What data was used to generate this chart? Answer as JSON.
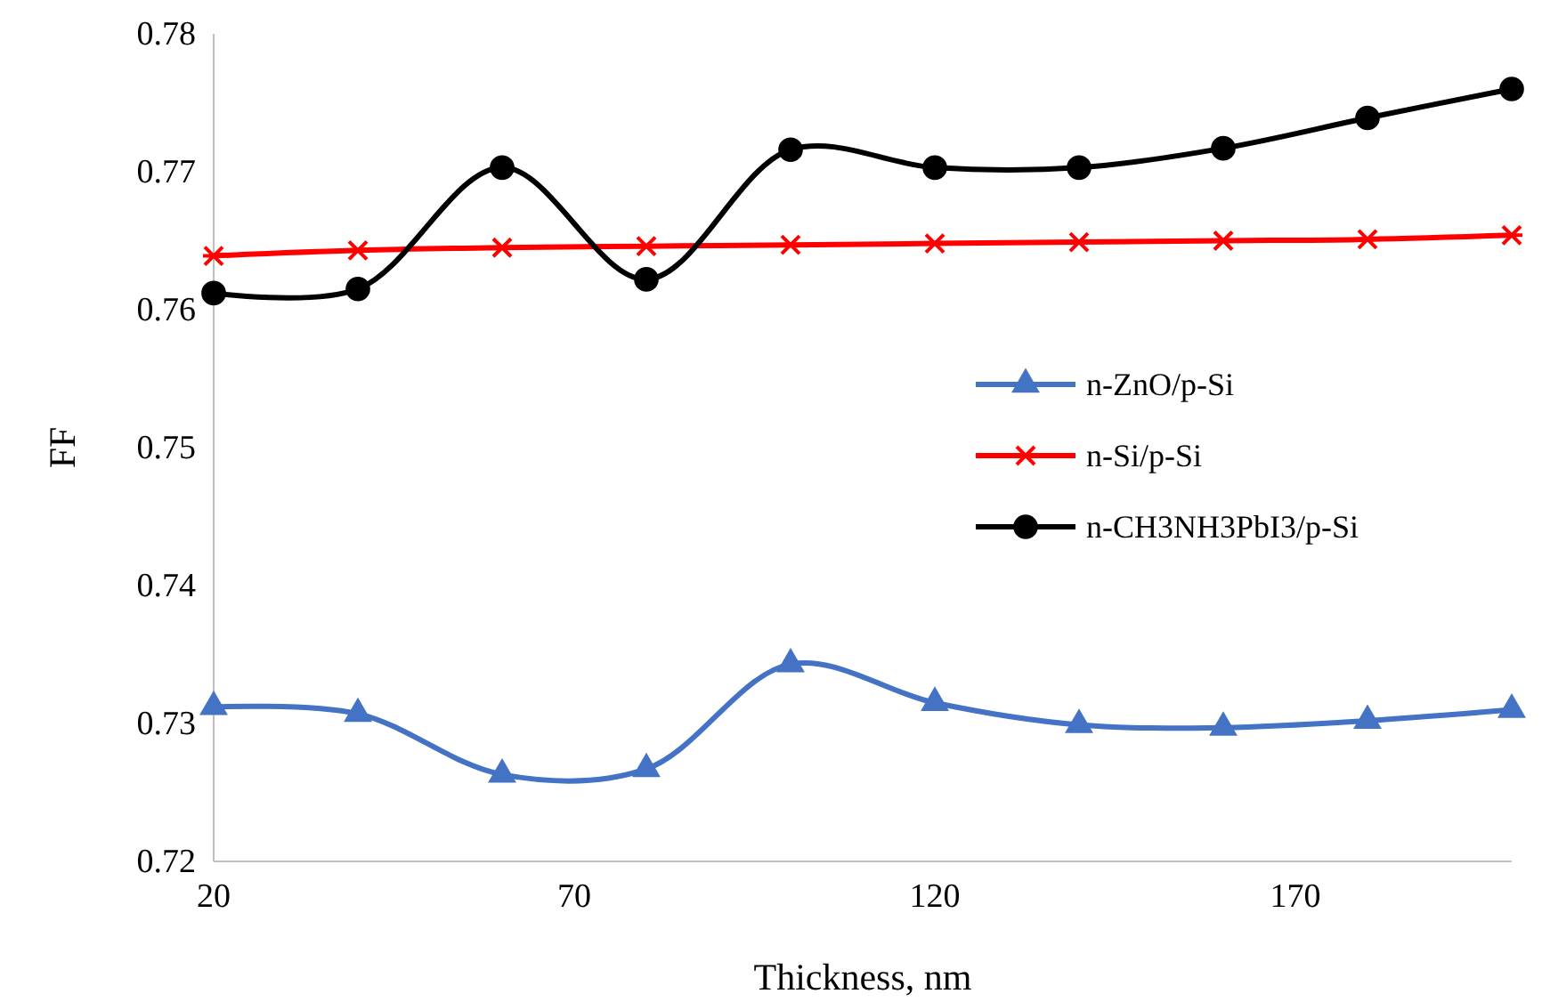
{
  "chart_data": {
    "type": "line",
    "xlabel": "Thickness, nm",
    "ylabel": "FF",
    "x": [
      20,
      40,
      60,
      80,
      100,
      120,
      140,
      160,
      180,
      200
    ],
    "xlim": [
      20,
      200
    ],
    "xticks": [
      20,
      70,
      120,
      170
    ],
    "ylim": [
      0.72,
      0.78
    ],
    "yticks": [
      0.72,
      0.73,
      0.74,
      0.75,
      0.76,
      0.77,
      0.78
    ],
    "legend": "right",
    "grid": false,
    "series": [
      {
        "name": "n-ZnO/p-Si",
        "color": "#4472c4",
        "marker": "triangle",
        "values": [
          0.7312,
          0.7307,
          0.7263,
          0.7267,
          0.7343,
          0.7315,
          0.7299,
          0.7297,
          0.7302,
          0.731
        ]
      },
      {
        "name": "n-Si/p-Si",
        "color": "#ff0000",
        "marker": "cross",
        "values": [
          0.7639,
          0.7643,
          0.7645,
          0.7646,
          0.7647,
          0.7648,
          0.7649,
          0.765,
          0.7651,
          0.7654
        ]
      },
      {
        "name": "n-CH3NH3PbI3/p-Si",
        "color": "#000000",
        "marker": "circle",
        "values": [
          0.7612,
          0.7615,
          0.7703,
          0.7622,
          0.7716,
          0.7703,
          0.7703,
          0.7717,
          0.7739,
          0.776
        ]
      }
    ]
  }
}
